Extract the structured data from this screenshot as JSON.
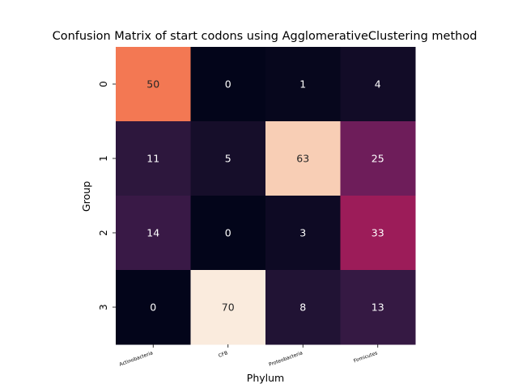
{
  "chart_data": {
    "type": "heatmap",
    "title": "Confusion Matrix of start codons using AgglomerativeClustering method",
    "xlabel": "Phylum",
    "ylabel": "Group",
    "x_categories": [
      "Actinobacteria",
      "CFB",
      "Proteobacteria",
      "Firmicutes"
    ],
    "y_categories": [
      "0",
      "1",
      "2",
      "3"
    ],
    "values": [
      [
        50,
        0,
        1,
        4
      ],
      [
        11,
        5,
        63,
        25
      ],
      [
        14,
        0,
        3,
        33
      ],
      [
        0,
        70,
        8,
        13
      ]
    ],
    "value_range": [
      0,
      70
    ],
    "colormap": "rocket",
    "colorbar": false,
    "annotated": true
  }
}
